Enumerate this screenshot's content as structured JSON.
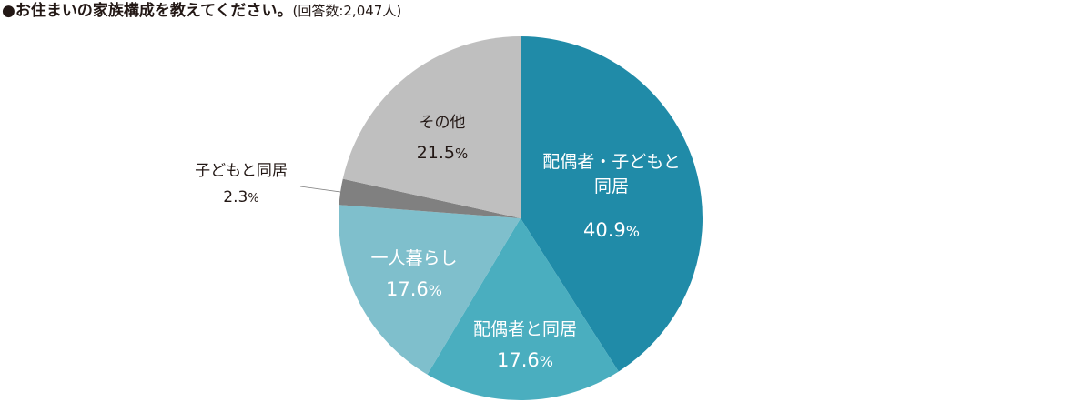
{
  "title": {
    "main": "●お住まいの家族構成を教えてください。",
    "sub": "(回答数:2,047人)"
  },
  "chart_data": {
    "type": "pie",
    "slices": [
      {
        "name_lines": [
          "配偶者・子どもと",
          "同居"
        ],
        "value": 40.9,
        "value_label": "40.9",
        "unit": "%",
        "color": "#208ba8",
        "label_color": "#ffffff"
      },
      {
        "name_lines": [
          "配偶者と同居"
        ],
        "value": 17.6,
        "value_label": "17.6",
        "unit": "%",
        "color": "#4aaebf",
        "label_color": "#ffffff"
      },
      {
        "name_lines": [
          "一人暮らし"
        ],
        "value": 17.6,
        "value_label": "17.6",
        "unit": "%",
        "color": "#7fbfcc",
        "label_color": "#ffffff"
      },
      {
        "name_lines": [
          "子どもと同居"
        ],
        "value": 2.3,
        "value_label": "2.3",
        "unit": "%",
        "color": "#808080",
        "label_color": "#231815",
        "outside": true
      },
      {
        "name_lines": [
          "その他"
        ],
        "value": 21.5,
        "value_label": "21.5",
        "unit": "%",
        "color": "#bfbfbf",
        "label_color": "#231815"
      }
    ],
    "start": "12 o'clock",
    "direction": "clockwise"
  }
}
